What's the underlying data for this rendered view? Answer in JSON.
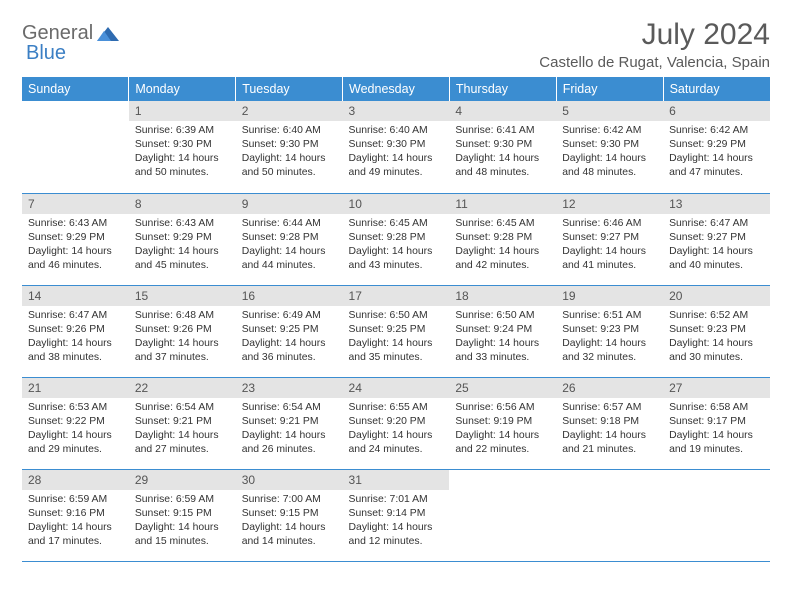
{
  "brand": {
    "part1": "General",
    "part2": "Blue"
  },
  "title": "July 2024",
  "location": "Castello de Rugat, Valencia, Spain",
  "weekdays": [
    "Sunday",
    "Monday",
    "Tuesday",
    "Wednesday",
    "Thursday",
    "Friday",
    "Saturday"
  ],
  "colors": {
    "header_bg": "#3b8dd1",
    "header_fg": "#ffffff",
    "daynum_bg": "#e4e4e4",
    "rule": "#3b8dd1",
    "text": "#333333",
    "title": "#5a5a5a"
  },
  "grid": [
    [
      {
        "empty": true
      },
      {
        "day": "1",
        "sunrise": "Sunrise: 6:39 AM",
        "sunset": "Sunset: 9:30 PM",
        "daylight": "Daylight: 14 hours and 50 minutes."
      },
      {
        "day": "2",
        "sunrise": "Sunrise: 6:40 AM",
        "sunset": "Sunset: 9:30 PM",
        "daylight": "Daylight: 14 hours and 50 minutes."
      },
      {
        "day": "3",
        "sunrise": "Sunrise: 6:40 AM",
        "sunset": "Sunset: 9:30 PM",
        "daylight": "Daylight: 14 hours and 49 minutes."
      },
      {
        "day": "4",
        "sunrise": "Sunrise: 6:41 AM",
        "sunset": "Sunset: 9:30 PM",
        "daylight": "Daylight: 14 hours and 48 minutes."
      },
      {
        "day": "5",
        "sunrise": "Sunrise: 6:42 AM",
        "sunset": "Sunset: 9:30 PM",
        "daylight": "Daylight: 14 hours and 48 minutes."
      },
      {
        "day": "6",
        "sunrise": "Sunrise: 6:42 AM",
        "sunset": "Sunset: 9:29 PM",
        "daylight": "Daylight: 14 hours and 47 minutes."
      }
    ],
    [
      {
        "day": "7",
        "sunrise": "Sunrise: 6:43 AM",
        "sunset": "Sunset: 9:29 PM",
        "daylight": "Daylight: 14 hours and 46 minutes."
      },
      {
        "day": "8",
        "sunrise": "Sunrise: 6:43 AM",
        "sunset": "Sunset: 9:29 PM",
        "daylight": "Daylight: 14 hours and 45 minutes."
      },
      {
        "day": "9",
        "sunrise": "Sunrise: 6:44 AM",
        "sunset": "Sunset: 9:28 PM",
        "daylight": "Daylight: 14 hours and 44 minutes."
      },
      {
        "day": "10",
        "sunrise": "Sunrise: 6:45 AM",
        "sunset": "Sunset: 9:28 PM",
        "daylight": "Daylight: 14 hours and 43 minutes."
      },
      {
        "day": "11",
        "sunrise": "Sunrise: 6:45 AM",
        "sunset": "Sunset: 9:28 PM",
        "daylight": "Daylight: 14 hours and 42 minutes."
      },
      {
        "day": "12",
        "sunrise": "Sunrise: 6:46 AM",
        "sunset": "Sunset: 9:27 PM",
        "daylight": "Daylight: 14 hours and 41 minutes."
      },
      {
        "day": "13",
        "sunrise": "Sunrise: 6:47 AM",
        "sunset": "Sunset: 9:27 PM",
        "daylight": "Daylight: 14 hours and 40 minutes."
      }
    ],
    [
      {
        "day": "14",
        "sunrise": "Sunrise: 6:47 AM",
        "sunset": "Sunset: 9:26 PM",
        "daylight": "Daylight: 14 hours and 38 minutes."
      },
      {
        "day": "15",
        "sunrise": "Sunrise: 6:48 AM",
        "sunset": "Sunset: 9:26 PM",
        "daylight": "Daylight: 14 hours and 37 minutes."
      },
      {
        "day": "16",
        "sunrise": "Sunrise: 6:49 AM",
        "sunset": "Sunset: 9:25 PM",
        "daylight": "Daylight: 14 hours and 36 minutes."
      },
      {
        "day": "17",
        "sunrise": "Sunrise: 6:50 AM",
        "sunset": "Sunset: 9:25 PM",
        "daylight": "Daylight: 14 hours and 35 minutes."
      },
      {
        "day": "18",
        "sunrise": "Sunrise: 6:50 AM",
        "sunset": "Sunset: 9:24 PM",
        "daylight": "Daylight: 14 hours and 33 minutes."
      },
      {
        "day": "19",
        "sunrise": "Sunrise: 6:51 AM",
        "sunset": "Sunset: 9:23 PM",
        "daylight": "Daylight: 14 hours and 32 minutes."
      },
      {
        "day": "20",
        "sunrise": "Sunrise: 6:52 AM",
        "sunset": "Sunset: 9:23 PM",
        "daylight": "Daylight: 14 hours and 30 minutes."
      }
    ],
    [
      {
        "day": "21",
        "sunrise": "Sunrise: 6:53 AM",
        "sunset": "Sunset: 9:22 PM",
        "daylight": "Daylight: 14 hours and 29 minutes."
      },
      {
        "day": "22",
        "sunrise": "Sunrise: 6:54 AM",
        "sunset": "Sunset: 9:21 PM",
        "daylight": "Daylight: 14 hours and 27 minutes."
      },
      {
        "day": "23",
        "sunrise": "Sunrise: 6:54 AM",
        "sunset": "Sunset: 9:21 PM",
        "daylight": "Daylight: 14 hours and 26 minutes."
      },
      {
        "day": "24",
        "sunrise": "Sunrise: 6:55 AM",
        "sunset": "Sunset: 9:20 PM",
        "daylight": "Daylight: 14 hours and 24 minutes."
      },
      {
        "day": "25",
        "sunrise": "Sunrise: 6:56 AM",
        "sunset": "Sunset: 9:19 PM",
        "daylight": "Daylight: 14 hours and 22 minutes."
      },
      {
        "day": "26",
        "sunrise": "Sunrise: 6:57 AM",
        "sunset": "Sunset: 9:18 PM",
        "daylight": "Daylight: 14 hours and 21 minutes."
      },
      {
        "day": "27",
        "sunrise": "Sunrise: 6:58 AM",
        "sunset": "Sunset: 9:17 PM",
        "daylight": "Daylight: 14 hours and 19 minutes."
      }
    ],
    [
      {
        "day": "28",
        "sunrise": "Sunrise: 6:59 AM",
        "sunset": "Sunset: 9:16 PM",
        "daylight": "Daylight: 14 hours and 17 minutes."
      },
      {
        "day": "29",
        "sunrise": "Sunrise: 6:59 AM",
        "sunset": "Sunset: 9:15 PM",
        "daylight": "Daylight: 14 hours and 15 minutes."
      },
      {
        "day": "30",
        "sunrise": "Sunrise: 7:00 AM",
        "sunset": "Sunset: 9:15 PM",
        "daylight": "Daylight: 14 hours and 14 minutes."
      },
      {
        "day": "31",
        "sunrise": "Sunrise: 7:01 AM",
        "sunset": "Sunset: 9:14 PM",
        "daylight": "Daylight: 14 hours and 12 minutes."
      },
      {
        "empty": true
      },
      {
        "empty": true
      },
      {
        "empty": true
      }
    ]
  ]
}
